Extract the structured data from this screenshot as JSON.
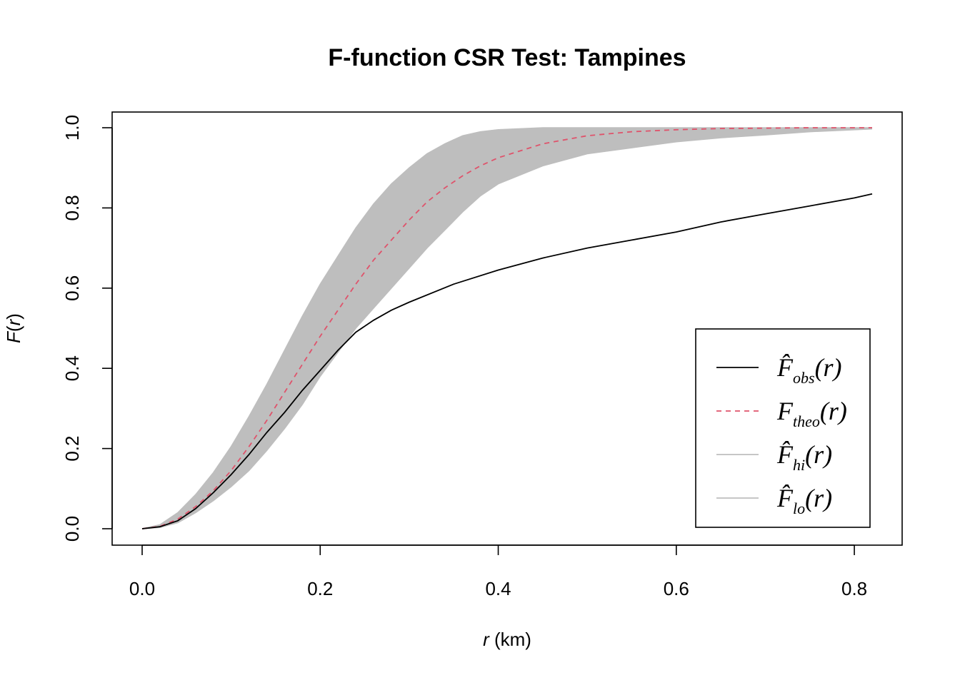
{
  "chart_data": {
    "type": "line",
    "title": "F-function CSR Test: Tampines",
    "xlabel_var": "r",
    "xlabel_unit": " (km)",
    "ylabel_fn": "F",
    "ylabel_var": "r",
    "xlim": [
      0,
      0.82
    ],
    "ylim": [
      0,
      1
    ],
    "xticks": [
      "0.0",
      "0.2",
      "0.4",
      "0.6",
      "0.8"
    ],
    "yticks": [
      "0.0",
      "0.2",
      "0.4",
      "0.6",
      "0.8",
      "1.0"
    ],
    "legend_position": "bottom-right",
    "series": [
      {
        "key": "obs",
        "name_main": "F̂",
        "name_sub": "obs",
        "name_arg": "(r)",
        "color": "#000000",
        "dash": "solid",
        "x": [
          0,
          0.02,
          0.04,
          0.06,
          0.08,
          0.1,
          0.12,
          0.14,
          0.16,
          0.18,
          0.2,
          0.22,
          0.24,
          0.26,
          0.28,
          0.3,
          0.35,
          0.4,
          0.45,
          0.5,
          0.55,
          0.6,
          0.65,
          0.7,
          0.75,
          0.8,
          0.82
        ],
        "y": [
          0,
          0.005,
          0.02,
          0.05,
          0.09,
          0.135,
          0.185,
          0.24,
          0.29,
          0.345,
          0.395,
          0.445,
          0.49,
          0.52,
          0.545,
          0.565,
          0.61,
          0.645,
          0.675,
          0.7,
          0.72,
          0.74,
          0.765,
          0.785,
          0.805,
          0.825,
          0.835
        ]
      },
      {
        "key": "theo",
        "name_main": "F",
        "name_sub": "theo",
        "name_arg": "(r)",
        "color": "#DF536B",
        "dash": "dashed",
        "x": [
          0,
          0.02,
          0.04,
          0.06,
          0.08,
          0.1,
          0.12,
          0.14,
          0.16,
          0.18,
          0.2,
          0.22,
          0.24,
          0.26,
          0.28,
          0.3,
          0.32,
          0.34,
          0.36,
          0.38,
          0.4,
          0.45,
          0.5,
          0.55,
          0.6,
          0.65,
          0.7,
          0.75,
          0.82
        ],
        "y": [
          0,
          0.006,
          0.024,
          0.055,
          0.095,
          0.145,
          0.205,
          0.27,
          0.34,
          0.41,
          0.48,
          0.545,
          0.61,
          0.67,
          0.72,
          0.77,
          0.815,
          0.85,
          0.88,
          0.905,
          0.925,
          0.96,
          0.98,
          0.99,
          0.995,
          0.998,
          0.999,
          1.0,
          1.0
        ]
      },
      {
        "key": "hi",
        "name_main": "F̂",
        "name_sub": "hi",
        "name_arg": "(r)",
        "color": "#BEBEBE",
        "dash": "solid",
        "x": [
          0,
          0.02,
          0.04,
          0.06,
          0.08,
          0.1,
          0.12,
          0.14,
          0.16,
          0.18,
          0.2,
          0.22,
          0.24,
          0.26,
          0.28,
          0.3,
          0.32,
          0.34,
          0.36,
          0.38,
          0.4,
          0.45,
          0.5,
          0.55,
          0.6,
          0.65,
          0.7,
          0.75,
          0.82
        ],
        "y": [
          0,
          0.01,
          0.04,
          0.085,
          0.14,
          0.205,
          0.28,
          0.36,
          0.445,
          0.53,
          0.61,
          0.68,
          0.75,
          0.81,
          0.86,
          0.9,
          0.935,
          0.96,
          0.98,
          0.99,
          0.995,
          1.0,
          1.0,
          1.0,
          1.0,
          1.0,
          1.0,
          1.0,
          1.0
        ]
      },
      {
        "key": "lo",
        "name_main": "F̂",
        "name_sub": "lo",
        "name_arg": "(r)",
        "color": "#BEBEBE",
        "dash": "solid",
        "x": [
          0,
          0.02,
          0.04,
          0.06,
          0.08,
          0.1,
          0.12,
          0.14,
          0.16,
          0.18,
          0.2,
          0.22,
          0.24,
          0.26,
          0.28,
          0.3,
          0.32,
          0.34,
          0.36,
          0.38,
          0.4,
          0.45,
          0.5,
          0.55,
          0.6,
          0.65,
          0.7,
          0.75,
          0.82
        ],
        "y": [
          0,
          0.003,
          0.015,
          0.04,
          0.07,
          0.105,
          0.145,
          0.195,
          0.25,
          0.31,
          0.38,
          0.44,
          0.5,
          0.55,
          0.6,
          0.65,
          0.7,
          0.745,
          0.79,
          0.83,
          0.86,
          0.905,
          0.935,
          0.95,
          0.965,
          0.975,
          0.982,
          0.99,
          0.997
        ]
      }
    ]
  }
}
